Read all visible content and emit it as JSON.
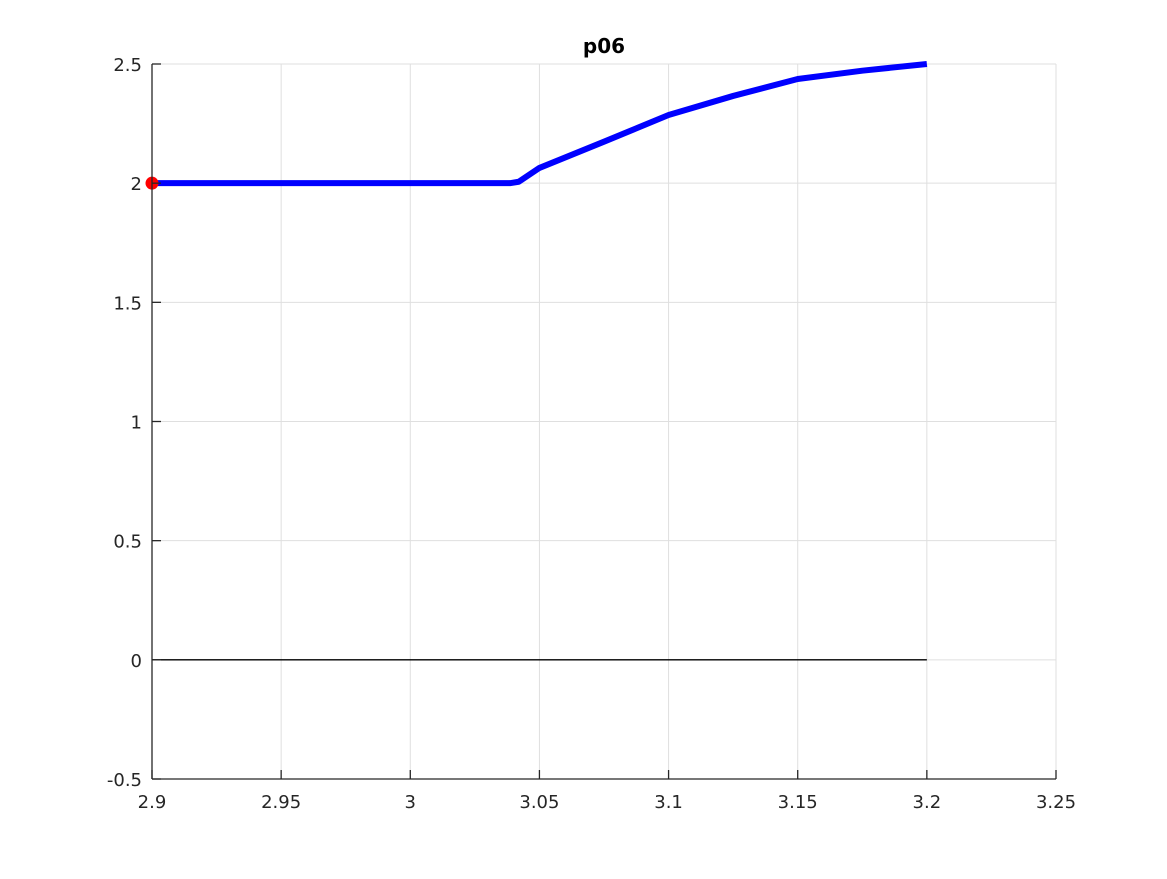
{
  "chart_data": {
    "type": "line",
    "title": "p06",
    "xlabel": "",
    "ylabel": "",
    "xlim": [
      2.9,
      3.25
    ],
    "ylim": [
      -0.5,
      2.5
    ],
    "grid": true,
    "xticks": [
      "2.9",
      "2.95",
      "3",
      "3.05",
      "3.1",
      "3.15",
      "3.2",
      "3.25"
    ],
    "yticks": [
      "-0.5",
      "0",
      "0.5",
      "1",
      "1.5",
      "2",
      "2.5"
    ],
    "series": [
      {
        "color": "#0000ff",
        "x": [
          2.9,
          3.0,
          3.035,
          3.0386,
          3.042,
          3.05,
          3.075,
          3.1,
          3.125,
          3.15,
          3.175,
          3.2
        ],
        "y": [
          2.0,
          2.0,
          2.0,
          2.0,
          2.006,
          2.064,
          2.174,
          2.286,
          2.366,
          2.437,
          2.472,
          2.5
        ]
      },
      {
        "color": "#000000",
        "x": [
          2.9,
          3.2
        ],
        "y": [
          0,
          0
        ]
      }
    ],
    "markers": [
      {
        "x": 2.9,
        "y": 2.0,
        "color": "#ff0000"
      }
    ]
  }
}
